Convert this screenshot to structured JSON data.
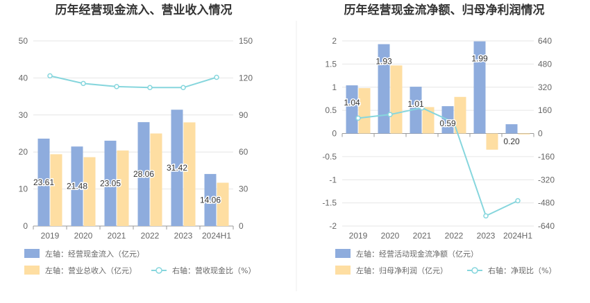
{
  "colors": {
    "bar1": "#8eacdd",
    "bar2": "#fedea2",
    "line": "#86d6dd",
    "grid": "#e6e6e6",
    "axis": "#999999",
    "divider": "#eeeeee"
  },
  "chart_data": [
    {
      "type": "bar",
      "title": "历年经营现金流入、营业收入情况",
      "categories": [
        "2019",
        "2020",
        "2021",
        "2022",
        "2023",
        "2024H1"
      ],
      "left_axis": {
        "ylim": [
          0,
          50
        ],
        "ticks": [
          "0",
          "10",
          "20",
          "30",
          "40",
          "50"
        ]
      },
      "right_axis": {
        "ylim": [
          0,
          150
        ],
        "ticks": [
          "0",
          "30",
          "60",
          "90",
          "120",
          "150"
        ]
      },
      "series": [
        {
          "name": "左轴：经营现金流入（亿元）",
          "kind": "bar",
          "axis": "left",
          "color": "#8eacdd",
          "values": [
            23.61,
            21.48,
            23.05,
            28.06,
            31.42,
            14.06
          ],
          "labels": [
            "23.61",
            "21.48",
            "23.05",
            "28.06",
            "31.42",
            "14.06"
          ]
        },
        {
          "name": "左轴：营业总收入（亿元）",
          "kind": "bar",
          "axis": "left",
          "color": "#fedea2",
          "values": [
            19.4,
            18.6,
            20.4,
            25.0,
            28.0,
            11.7
          ]
        },
        {
          "name": "右轴：营收现金比（%）",
          "kind": "line",
          "axis": "right",
          "color": "#86d6dd",
          "values": [
            121.7,
            115.5,
            113.0,
            112.2,
            112.2,
            120.5
          ]
        }
      ],
      "grid": true,
      "legend": "bottom"
    },
    {
      "type": "bar",
      "title": "历年经营现金流净额、归母净利润情况",
      "categories": [
        "2019",
        "2020",
        "2021",
        "2022",
        "2023",
        "2024H1"
      ],
      "left_axis": {
        "ylim": [
          -2,
          2
        ],
        "ticks": [
          "-2",
          "-1.5",
          "-1",
          "-0.5",
          "0",
          "0.5",
          "1",
          "1.5",
          "2"
        ]
      },
      "right_axis": {
        "ylim": [
          -640,
          640
        ],
        "ticks": [
          "-640",
          "-480",
          "-320",
          "-160",
          "0",
          "160",
          "320",
          "480",
          "640"
        ]
      },
      "series": [
        {
          "name": "左轴：经营活动现金流净额（亿元）",
          "kind": "bar",
          "axis": "left",
          "color": "#8eacdd",
          "values": [
            1.04,
            1.93,
            1.01,
            0.59,
            1.99,
            0.2
          ],
          "labels": [
            "1.04",
            "1.93",
            "1.01",
            "0.59",
            "1.99",
            "0.20"
          ]
        },
        {
          "name": "左轴：归母净利润（亿元）",
          "kind": "bar",
          "axis": "left",
          "color": "#fedea2",
          "values": [
            0.98,
            1.47,
            0.57,
            0.79,
            -0.35,
            -0.02
          ]
        },
        {
          "name": "右轴：净现比（%）",
          "kind": "line",
          "axis": "right",
          "color": "#86d6dd",
          "values": [
            106,
            131,
            177,
            75,
            -570,
            -465
          ]
        }
      ],
      "grid": true,
      "legend": "bottom"
    }
  ]
}
